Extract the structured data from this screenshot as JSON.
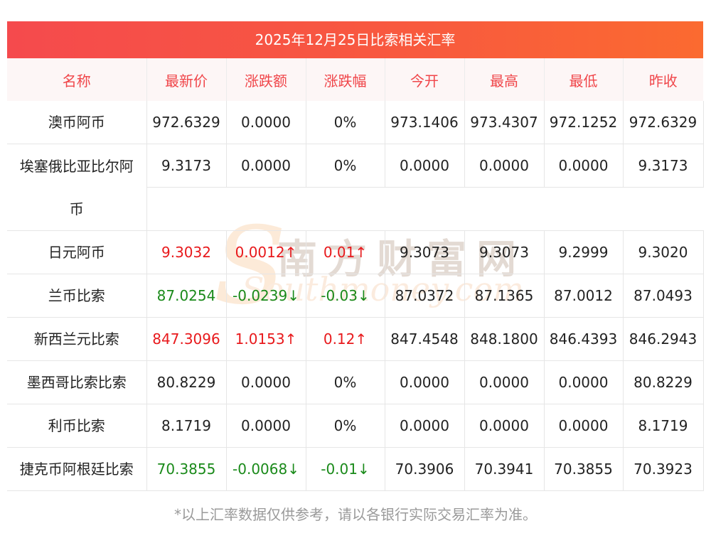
{
  "title": "2025年12月25日比索相关汇率",
  "headers": [
    "名称",
    "最新价",
    "涨跌额",
    "涨跌幅",
    "今开",
    "最高",
    "最低",
    "昨收"
  ],
  "rows": [
    {
      "name": [
        "澳币阿币"
      ],
      "latest": "972.6329",
      "change": "0.0000",
      "pct": "0%",
      "open": "973.1406",
      "high": "973.4307",
      "low": "972.1252",
      "prev": "972.6329",
      "trend": "flat"
    },
    {
      "name": [
        "埃塞俄比亚比尔阿",
        "币"
      ],
      "latest": "9.3173",
      "change": "0.0000",
      "pct": "0%",
      "open": "0.0000",
      "high": "0.0000",
      "low": "0.0000",
      "prev": "9.3173",
      "trend": "flat"
    },
    {
      "name": [
        "日元阿币"
      ],
      "latest": "9.3032",
      "change": "0.0012↑",
      "pct": "0.01↑",
      "open": "9.3073",
      "high": "9.3073",
      "low": "9.2999",
      "prev": "9.3020",
      "trend": "up"
    },
    {
      "name": [
        "兰币比索"
      ],
      "latest": "87.0254",
      "change": "-0.0239↓",
      "pct": "-0.03↓",
      "open": "87.0372",
      "high": "87.1365",
      "low": "87.0012",
      "prev": "87.0493",
      "trend": "down"
    },
    {
      "name": [
        "新西兰元比索"
      ],
      "latest": "847.3096",
      "change": "1.0153↑",
      "pct": "0.12↑",
      "open": "847.4548",
      "high": "848.1800",
      "low": "846.4393",
      "prev": "846.2943",
      "trend": "up"
    },
    {
      "name": [
        "墨西哥比索比索"
      ],
      "latest": "80.8229",
      "change": "0.0000",
      "pct": "0%",
      "open": "0.0000",
      "high": "0.0000",
      "low": "0.0000",
      "prev": "80.8229",
      "trend": "flat"
    },
    {
      "name": [
        "利币比索"
      ],
      "latest": "8.1719",
      "change": "0.0000",
      "pct": "0%",
      "open": "0.0000",
      "high": "0.0000",
      "low": "0.0000",
      "prev": "8.1719",
      "trend": "flat"
    },
    {
      "name": [
        "捷克币阿根廷比索"
      ],
      "latest": "70.3855",
      "change": "-0.0068↓",
      "pct": "-0.01↓",
      "open": "70.3906",
      "high": "70.3941",
      "low": "70.3855",
      "prev": "70.3923",
      "trend": "down"
    }
  ],
  "colors": {
    "up": "#e8191c",
    "down": "#1a8a1a",
    "header_text": "#f0464a",
    "title_bg": "#f5504a"
  },
  "watermark": {
    "cn": "南方财富网",
    "en": "Southmoney.com"
  },
  "note": "*以上汇率数据仅供参考，请以各银行实际交易汇率为准。"
}
